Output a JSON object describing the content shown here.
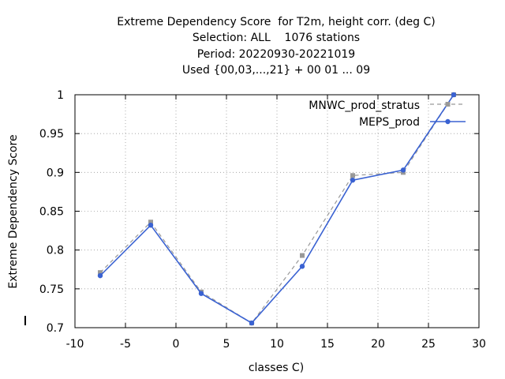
{
  "chart_data": {
    "type": "line",
    "title_lines": [
      "Extreme Dependency Score  for T2m, height corr. (deg C)",
      "Selection: ALL    1076 stations",
      "Period: 20220930-20221019",
      "Used {00,03,...,21} + 00 01 ... 09"
    ],
    "xlabel": "classes C)",
    "ylabel": "Extreme Dependency Score",
    "xlim": [
      -10,
      30
    ],
    "ylim": [
      0.7,
      1.0
    ],
    "xticks": [
      -10,
      -5,
      0,
      5,
      10,
      15,
      20,
      25,
      30
    ],
    "yticks": [
      0.7,
      0.75,
      0.8,
      0.85,
      0.9,
      0.95,
      1
    ],
    "ytick_labels": [
      "0.7",
      "0.75",
      "0.8",
      "0.85",
      "0.9",
      "0.95",
      "1"
    ],
    "grid": true,
    "legend_position": "top-right",
    "series": [
      {
        "name": "MNWC_prod_stratus",
        "color": "#999999",
        "dashed": true,
        "x": [
          -7.5,
          -2.5,
          2.5,
          7.5,
          12.5,
          17.5,
          22.5,
          27.5
        ],
        "y": [
          0.771,
          0.836,
          0.746,
          0.706,
          0.793,
          0.896,
          0.9,
          1.0
        ]
      },
      {
        "name": "MEPS_prod",
        "color": "#3a62d2",
        "dashed": false,
        "x": [
          -7.5,
          -2.5,
          2.5,
          7.5,
          12.5,
          17.5,
          22.5,
          27.5
        ],
        "y": [
          0.767,
          0.832,
          0.744,
          0.706,
          0.779,
          0.89,
          0.903,
          1.0
        ]
      }
    ]
  }
}
